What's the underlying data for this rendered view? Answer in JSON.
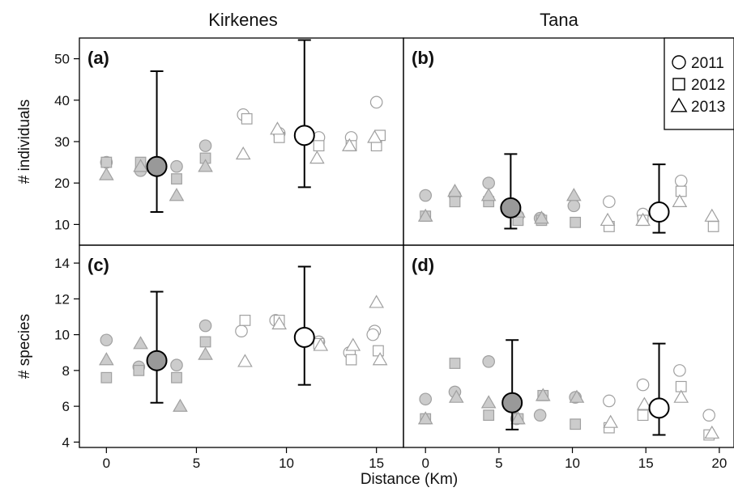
{
  "page": {
    "column_titles": [
      "Kirkenes",
      "Tana"
    ],
    "x_axis_label": "Distance (Km)",
    "legend": {
      "placement": "top-right",
      "entries": [
        {
          "label": "2011",
          "marker": "circle"
        },
        {
          "label": "2012",
          "marker": "square"
        },
        {
          "label": "2013",
          "marker": "triangle"
        }
      ]
    },
    "colors": {
      "filled_marker": "#cccccc",
      "filled_marker_stroke": "#a0a0a0",
      "open_marker_stroke": "#a0a0a0",
      "mean_filled": "#999999",
      "mean_open": "#ffffff",
      "axis": "#000000"
    }
  },
  "chart_data": [
    {
      "type": "scatter",
      "panel_label": "(a)",
      "column": "Kirkenes",
      "ylabel": "# individuals",
      "xlim": [
        -1.5,
        16.5
      ],
      "ylim": [
        5,
        55
      ],
      "x_ticks": [
        0,
        5,
        10,
        15
      ],
      "y_ticks": [
        10,
        20,
        30,
        40,
        50
      ],
      "show_x_tick_labels": false,
      "points": [
        {
          "x": 0,
          "y": 25,
          "marker": "circle",
          "filled": true
        },
        {
          "x": 0,
          "y": 25,
          "marker": "square",
          "filled": true
        },
        {
          "x": 0,
          "y": 22,
          "marker": "triangle",
          "filled": true
        },
        {
          "x": 1.9,
          "y": 23,
          "marker": "circle",
          "filled": true
        },
        {
          "x": 1.9,
          "y": 25,
          "marker": "square",
          "filled": true
        },
        {
          "x": 1.9,
          "y": 24,
          "marker": "triangle",
          "filled": true
        },
        {
          "x": 3.9,
          "y": 24,
          "marker": "circle",
          "filled": true
        },
        {
          "x": 3.9,
          "y": 21,
          "marker": "square",
          "filled": true
        },
        {
          "x": 3.9,
          "y": 17,
          "marker": "triangle",
          "filled": true
        },
        {
          "x": 5.5,
          "y": 29,
          "marker": "circle",
          "filled": true
        },
        {
          "x": 5.5,
          "y": 26,
          "marker": "square",
          "filled": true
        },
        {
          "x": 5.5,
          "y": 24,
          "marker": "triangle",
          "filled": true
        },
        {
          "x": 7.6,
          "y": 36.5,
          "marker": "circle",
          "filled": false
        },
        {
          "x": 7.8,
          "y": 35.5,
          "marker": "square",
          "filled": false
        },
        {
          "x": 7.6,
          "y": 27,
          "marker": "triangle",
          "filled": false
        },
        {
          "x": 9.6,
          "y": 32,
          "marker": "circle",
          "filled": false
        },
        {
          "x": 9.6,
          "y": 31,
          "marker": "square",
          "filled": false
        },
        {
          "x": 9.5,
          "y": 33,
          "marker": "triangle",
          "filled": false
        },
        {
          "x": 11.8,
          "y": 31,
          "marker": "circle",
          "filled": false
        },
        {
          "x": 11.8,
          "y": 29,
          "marker": "square",
          "filled": false
        },
        {
          "x": 11.7,
          "y": 26,
          "marker": "triangle",
          "filled": false
        },
        {
          "x": 13.6,
          "y": 31,
          "marker": "circle",
          "filled": false
        },
        {
          "x": 13.6,
          "y": 29,
          "marker": "square",
          "filled": false
        },
        {
          "x": 13.5,
          "y": 29,
          "marker": "triangle",
          "filled": false
        },
        {
          "x": 15.0,
          "y": 39.5,
          "marker": "circle",
          "filled": false
        },
        {
          "x": 15.2,
          "y": 31.5,
          "marker": "square",
          "filled": false
        },
        {
          "x": 15.0,
          "y": 29,
          "marker": "square",
          "filled": false
        },
        {
          "x": 14.9,
          "y": 31,
          "marker": "triangle",
          "filled": false
        }
      ],
      "means": [
        {
          "x": 2.8,
          "y": 24,
          "lower": 13,
          "upper": 47,
          "filled": true
        },
        {
          "x": 11.0,
          "y": 31.5,
          "lower": 19,
          "upper": 54.5,
          "filled": false
        }
      ]
    },
    {
      "type": "scatter",
      "panel_label": "(b)",
      "column": "Tana",
      "ylabel": "",
      "xlim": [
        -1.5,
        21
      ],
      "ylim": [
        5,
        55
      ],
      "x_ticks": [
        0,
        5,
        10,
        15,
        20
      ],
      "y_ticks": [
        10,
        20,
        30,
        40,
        50
      ],
      "show_x_tick_labels": false,
      "points": [
        {
          "x": 0,
          "y": 17,
          "marker": "circle",
          "filled": true
        },
        {
          "x": 0,
          "y": 12,
          "marker": "square",
          "filled": true
        },
        {
          "x": 0,
          "y": 12,
          "marker": "triangle",
          "filled": true
        },
        {
          "x": 2.0,
          "y": 17,
          "marker": "circle",
          "filled": true
        },
        {
          "x": 2.0,
          "y": 15.5,
          "marker": "square",
          "filled": true
        },
        {
          "x": 2.0,
          "y": 18,
          "marker": "triangle",
          "filled": true
        },
        {
          "x": 4.3,
          "y": 20,
          "marker": "circle",
          "filled": true
        },
        {
          "x": 4.3,
          "y": 15.5,
          "marker": "square",
          "filled": true
        },
        {
          "x": 4.3,
          "y": 17,
          "marker": "triangle",
          "filled": true
        },
        {
          "x": 6.3,
          "y": 12,
          "marker": "circle",
          "filled": true
        },
        {
          "x": 6.3,
          "y": 11,
          "marker": "square",
          "filled": true
        },
        {
          "x": 6.3,
          "y": 13,
          "marker": "triangle",
          "filled": true
        },
        {
          "x": 7.8,
          "y": 11.5,
          "marker": "circle",
          "filled": true
        },
        {
          "x": 7.9,
          "y": 11,
          "marker": "square",
          "filled": true
        },
        {
          "x": 7.9,
          "y": 11.5,
          "marker": "triangle",
          "filled": true
        },
        {
          "x": 10.1,
          "y": 14.5,
          "marker": "circle",
          "filled": true
        },
        {
          "x": 10.2,
          "y": 10.5,
          "marker": "square",
          "filled": true
        },
        {
          "x": 10.1,
          "y": 17,
          "marker": "triangle",
          "filled": true
        },
        {
          "x": 12.5,
          "y": 15.5,
          "marker": "circle",
          "filled": false
        },
        {
          "x": 12.5,
          "y": 9.5,
          "marker": "square",
          "filled": false
        },
        {
          "x": 12.4,
          "y": 11,
          "marker": "triangle",
          "filled": false
        },
        {
          "x": 14.8,
          "y": 12.5,
          "marker": "circle",
          "filled": false
        },
        {
          "x": 14.8,
          "y": 11,
          "marker": "square",
          "filled": false
        },
        {
          "x": 14.8,
          "y": 11,
          "marker": "triangle",
          "filled": false
        },
        {
          "x": 17.4,
          "y": 20.5,
          "marker": "circle",
          "filled": false
        },
        {
          "x": 17.4,
          "y": 18,
          "marker": "square",
          "filled": false
        },
        {
          "x": 17.3,
          "y": 15.5,
          "marker": "triangle",
          "filled": false
        },
        {
          "x": 19.6,
          "y": 9.5,
          "marker": "square",
          "filled": false
        },
        {
          "x": 19.5,
          "y": 12,
          "marker": "triangle",
          "filled": false
        }
      ],
      "means": [
        {
          "x": 5.8,
          "y": 14,
          "lower": 9,
          "upper": 27,
          "filled": true
        },
        {
          "x": 15.9,
          "y": 13,
          "lower": 8,
          "upper": 24.5,
          "filled": false
        }
      ]
    },
    {
      "type": "scatter",
      "panel_label": "(c)",
      "column": "Kirkenes",
      "ylabel": "# species",
      "xlim": [
        -1.5,
        16.5
      ],
      "ylim": [
        3.7,
        15
      ],
      "x_ticks": [
        0,
        5,
        10,
        15
      ],
      "y_ticks": [
        4,
        6,
        8,
        10,
        12,
        14
      ],
      "show_x_tick_labels": true,
      "points": [
        {
          "x": 0,
          "y": 9.7,
          "marker": "circle",
          "filled": true
        },
        {
          "x": 0,
          "y": 7.6,
          "marker": "square",
          "filled": true
        },
        {
          "x": 0,
          "y": 8.6,
          "marker": "triangle",
          "filled": true
        },
        {
          "x": 1.8,
          "y": 8.2,
          "marker": "circle",
          "filled": true
        },
        {
          "x": 1.8,
          "y": 8.0,
          "marker": "square",
          "filled": true
        },
        {
          "x": 1.9,
          "y": 9.5,
          "marker": "triangle",
          "filled": true
        },
        {
          "x": 3.9,
          "y": 8.3,
          "marker": "circle",
          "filled": true
        },
        {
          "x": 3.9,
          "y": 7.6,
          "marker": "square",
          "filled": true
        },
        {
          "x": 4.1,
          "y": 6.0,
          "marker": "triangle",
          "filled": true
        },
        {
          "x": 5.5,
          "y": 10.5,
          "marker": "circle",
          "filled": true
        },
        {
          "x": 5.5,
          "y": 9.6,
          "marker": "square",
          "filled": true
        },
        {
          "x": 5.5,
          "y": 8.9,
          "marker": "triangle",
          "filled": true
        },
        {
          "x": 7.5,
          "y": 10.2,
          "marker": "circle",
          "filled": false
        },
        {
          "x": 7.7,
          "y": 10.8,
          "marker": "square",
          "filled": false
        },
        {
          "x": 7.7,
          "y": 8.5,
          "marker": "triangle",
          "filled": false
        },
        {
          "x": 9.4,
          "y": 10.8,
          "marker": "circle",
          "filled": false
        },
        {
          "x": 9.6,
          "y": 10.8,
          "marker": "square",
          "filled": false
        },
        {
          "x": 9.6,
          "y": 10.6,
          "marker": "triangle",
          "filled": false
        },
        {
          "x": 11.8,
          "y": 9.6,
          "marker": "circle",
          "filled": false
        },
        {
          "x": 11.8,
          "y": 9.5,
          "marker": "square",
          "filled": false
        },
        {
          "x": 11.9,
          "y": 9.4,
          "marker": "triangle",
          "filled": false
        },
        {
          "x": 13.5,
          "y": 9.0,
          "marker": "circle",
          "filled": false
        },
        {
          "x": 13.6,
          "y": 8.6,
          "marker": "square",
          "filled": false
        },
        {
          "x": 13.7,
          "y": 9.4,
          "marker": "triangle",
          "filled": false
        },
        {
          "x": 14.9,
          "y": 10.2,
          "marker": "circle",
          "filled": false
        },
        {
          "x": 14.8,
          "y": 10.0,
          "marker": "circle",
          "filled": false
        },
        {
          "x": 15.1,
          "y": 9.1,
          "marker": "square",
          "filled": false
        },
        {
          "x": 15.0,
          "y": 11.8,
          "marker": "triangle",
          "filled": false
        },
        {
          "x": 15.2,
          "y": 8.6,
          "marker": "triangle",
          "filled": false
        }
      ],
      "means": [
        {
          "x": 2.8,
          "y": 8.55,
          "lower": 6.2,
          "upper": 12.4,
          "filled": true
        },
        {
          "x": 11.0,
          "y": 9.85,
          "lower": 7.2,
          "upper": 13.8,
          "filled": false
        }
      ]
    },
    {
      "type": "scatter",
      "panel_label": "(d)",
      "column": "Tana",
      "ylabel": "",
      "xlim": [
        -1.5,
        21
      ],
      "ylim": [
        3.7,
        15
      ],
      "x_ticks": [
        0,
        5,
        10,
        15,
        20
      ],
      "y_ticks": [
        4,
        6,
        8,
        10,
        12,
        14
      ],
      "show_x_tick_labels": true,
      "points": [
        {
          "x": 0,
          "y": 6.4,
          "marker": "circle",
          "filled": true
        },
        {
          "x": 0,
          "y": 5.3,
          "marker": "square",
          "filled": true
        },
        {
          "x": 0,
          "y": 5.3,
          "marker": "triangle",
          "filled": true
        },
        {
          "x": 2.0,
          "y": 6.8,
          "marker": "circle",
          "filled": true
        },
        {
          "x": 2.0,
          "y": 8.4,
          "marker": "square",
          "filled": true
        },
        {
          "x": 2.1,
          "y": 6.5,
          "marker": "triangle",
          "filled": true
        },
        {
          "x": 4.3,
          "y": 8.5,
          "marker": "circle",
          "filled": true
        },
        {
          "x": 4.3,
          "y": 5.5,
          "marker": "square",
          "filled": true
        },
        {
          "x": 4.3,
          "y": 6.2,
          "marker": "triangle",
          "filled": true
        },
        {
          "x": 6.2,
          "y": 5.3,
          "marker": "circle",
          "filled": true
        },
        {
          "x": 6.3,
          "y": 5.3,
          "marker": "square",
          "filled": true
        },
        {
          "x": 6.3,
          "y": 5.3,
          "marker": "triangle",
          "filled": true
        },
        {
          "x": 7.8,
          "y": 5.5,
          "marker": "circle",
          "filled": true
        },
        {
          "x": 8.0,
          "y": 6.6,
          "marker": "square",
          "filled": true
        },
        {
          "x": 8.0,
          "y": 6.6,
          "marker": "triangle",
          "filled": true
        },
        {
          "x": 10.2,
          "y": 6.5,
          "marker": "circle",
          "filled": true
        },
        {
          "x": 10.2,
          "y": 5.0,
          "marker": "square",
          "filled": true
        },
        {
          "x": 10.3,
          "y": 6.5,
          "marker": "triangle",
          "filled": true
        },
        {
          "x": 12.5,
          "y": 6.3,
          "marker": "circle",
          "filled": false
        },
        {
          "x": 12.5,
          "y": 4.8,
          "marker": "square",
          "filled": false
        },
        {
          "x": 12.6,
          "y": 5.1,
          "marker": "triangle",
          "filled": false
        },
        {
          "x": 14.8,
          "y": 7.2,
          "marker": "circle",
          "filled": false
        },
        {
          "x": 14.8,
          "y": 5.5,
          "marker": "square",
          "filled": false
        },
        {
          "x": 14.9,
          "y": 6.1,
          "marker": "triangle",
          "filled": false
        },
        {
          "x": 17.3,
          "y": 8.0,
          "marker": "circle",
          "filled": false
        },
        {
          "x": 17.4,
          "y": 7.1,
          "marker": "square",
          "filled": false
        },
        {
          "x": 17.4,
          "y": 6.5,
          "marker": "triangle",
          "filled": false
        },
        {
          "x": 19.3,
          "y": 5.5,
          "marker": "circle",
          "filled": false
        },
        {
          "x": 19.3,
          "y": 4.4,
          "marker": "square",
          "filled": false
        },
        {
          "x": 19.5,
          "y": 4.5,
          "marker": "triangle",
          "filled": false
        }
      ],
      "means": [
        {
          "x": 5.9,
          "y": 6.2,
          "lower": 4.7,
          "upper": 9.7,
          "filled": true
        },
        {
          "x": 15.9,
          "y": 5.9,
          "lower": 4.4,
          "upper": 9.5,
          "filled": false
        }
      ]
    }
  ]
}
